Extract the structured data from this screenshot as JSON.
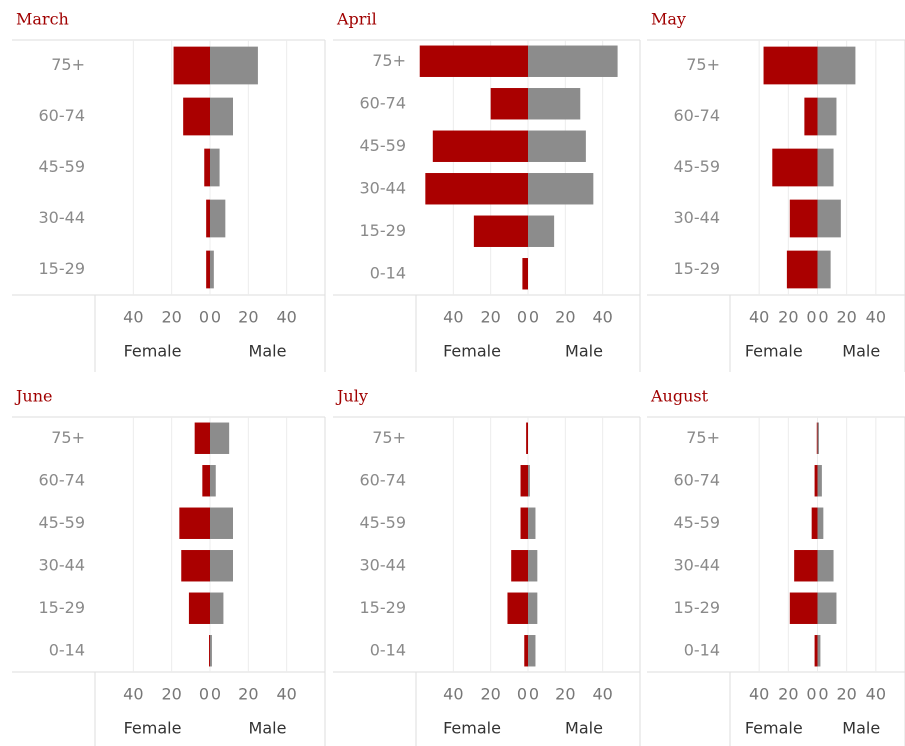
{
  "chart_data": [
    {
      "type": "bar",
      "title": "March",
      "categories": [
        "75+",
        "60-74",
        "45-59",
        "30-44",
        "15-29"
      ],
      "series": [
        {
          "name": "Female",
          "color": "#aa0000",
          "values": [
            19,
            14,
            3,
            2,
            2
          ]
        },
        {
          "name": "Male",
          "color": "#8c8c8c",
          "values": [
            25,
            12,
            5,
            8,
            2
          ]
        }
      ],
      "xlim": [
        0,
        60
      ],
      "xticks": [
        0,
        20,
        40
      ],
      "grid": true
    },
    {
      "type": "bar",
      "title": "April",
      "categories": [
        "75+",
        "60-74",
        "45-59",
        "30-44",
        "15-29",
        "0-14"
      ],
      "series": [
        {
          "name": "Female",
          "color": "#aa0000",
          "values": [
            58,
            20,
            51,
            55,
            29,
            3
          ]
        },
        {
          "name": "Male",
          "color": "#8c8c8c",
          "values": [
            48,
            28,
            31,
            35,
            14,
            0
          ]
        }
      ],
      "xlim": [
        0,
        60
      ],
      "xticks": [
        0,
        20,
        40
      ],
      "grid": true
    },
    {
      "type": "bar",
      "title": "May",
      "categories": [
        "75+",
        "60-74",
        "45-59",
        "30-44",
        "15-29"
      ],
      "series": [
        {
          "name": "Female",
          "color": "#aa0000",
          "values": [
            37,
            9,
            31,
            19,
            21
          ]
        },
        {
          "name": "Male",
          "color": "#8c8c8c",
          "values": [
            26,
            13,
            11,
            16,
            9
          ]
        }
      ],
      "xlim": [
        0,
        60
      ],
      "xticks": [
        0,
        20,
        40
      ],
      "grid": true
    },
    {
      "type": "bar",
      "title": "June",
      "categories": [
        "75+",
        "60-74",
        "45-59",
        "30-44",
        "15-29",
        "0-14"
      ],
      "series": [
        {
          "name": "Female",
          "color": "#aa0000",
          "values": [
            8,
            4,
            16,
            15,
            11,
            0.5
          ]
        },
        {
          "name": "Male",
          "color": "#8c8c8c",
          "values": [
            10,
            3,
            12,
            12,
            7,
            1
          ]
        }
      ],
      "xlim": [
        0,
        60
      ],
      "xticks": [
        0,
        20,
        40
      ],
      "grid": true
    },
    {
      "type": "bar",
      "title": "July",
      "categories": [
        "75+",
        "60-74",
        "45-59",
        "30-44",
        "15-29",
        "0-14"
      ],
      "series": [
        {
          "name": "Female",
          "color": "#aa0000",
          "values": [
            1,
            4,
            4,
            9,
            11,
            2
          ]
        },
        {
          "name": "Male",
          "color": "#8c8c8c",
          "values": [
            0,
            1,
            4,
            5,
            5,
            4
          ]
        }
      ],
      "xlim": [
        0,
        60
      ],
      "xticks": [
        0,
        20,
        40
      ],
      "grid": true
    },
    {
      "type": "bar",
      "title": "August",
      "categories": [
        "75+",
        "60-74",
        "45-59",
        "30-44",
        "15-29",
        "0-14"
      ],
      "series": [
        {
          "name": "Female",
          "color": "#aa0000",
          "values": [
            0.5,
            2,
            4,
            16,
            19,
            2
          ]
        },
        {
          "name": "Male",
          "color": "#8c8c8c",
          "values": [
            1,
            3,
            4,
            11,
            13,
            2
          ]
        }
      ],
      "xlim": [
        0,
        60
      ],
      "xticks": [
        0,
        20,
        40
      ],
      "grid": true
    }
  ]
}
